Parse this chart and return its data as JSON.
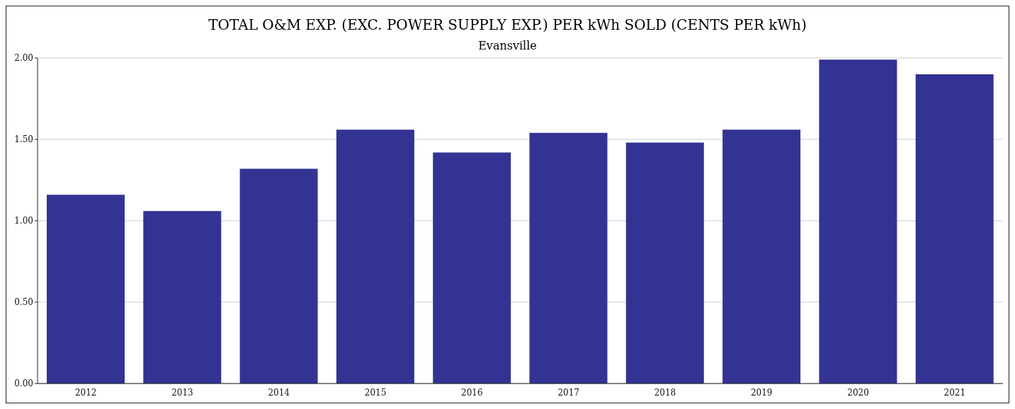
{
  "chart_data": {
    "type": "bar",
    "title": "TOTAL O&M EXP. (EXC. POWER SUPPLY EXP.) PER kWh SOLD (CENTS PER kWh)",
    "subtitle": "Evansville",
    "categories": [
      "2012",
      "2013",
      "2014",
      "2015",
      "2016",
      "2017",
      "2018",
      "2019",
      "2020",
      "2021"
    ],
    "values": [
      1.16,
      1.06,
      1.32,
      1.56,
      1.42,
      1.54,
      1.48,
      1.56,
      1.99,
      1.9
    ],
    "color": "#333394",
    "ylim": [
      0,
      2
    ],
    "yticks": [
      {
        "value": 0,
        "label": "0.00"
      },
      {
        "value": 0.5,
        "label": "0.50"
      },
      {
        "value": 1,
        "label": "1.00"
      },
      {
        "value": 1.5,
        "label": "1.50"
      },
      {
        "value": 2,
        "label": "2.00"
      }
    ],
    "grid": "y"
  }
}
